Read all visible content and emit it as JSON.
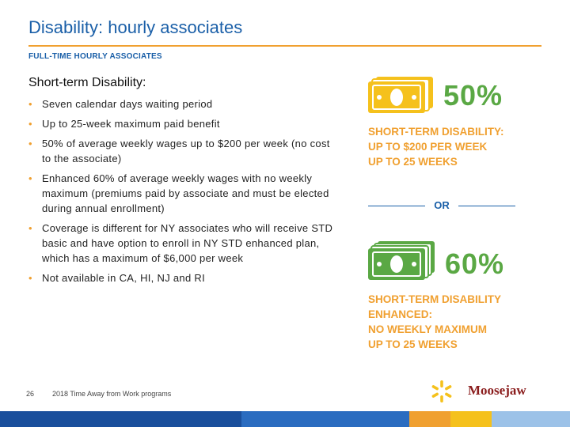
{
  "header": {
    "title": "Disability: hourly associates",
    "subtitle": "FULL-TIME HOURLY ASSOCIATES"
  },
  "main": {
    "section_heading": "Short-term Disability:",
    "bullets": [
      "Seven calendar days waiting period",
      "Up to 25-week maximum paid benefit",
      "50% of average weekly wages up to $200 per week (no cost to the associate)",
      "Enhanced 60% of average weekly wages with no weekly maximum (premiums paid by associate and must be elected during annual enrollment)",
      "Coverage is different for NY associates who will receive STD basic and have option to enroll in NY STD enhanced plan, which has a maximum of $6,000 per week",
      "Not available in CA, HI, NJ and RI"
    ]
  },
  "callouts": {
    "basic": {
      "percent": "50%",
      "lines": [
        "SHORT-TERM DISABILITY:",
        "UP TO $200 PER WEEK",
        "UP TO 25 WEEKS"
      ]
    },
    "separator": "OR",
    "enhanced": {
      "percent": "60%",
      "lines": [
        "SHORT-TERM DISABILITY",
        "ENHANCED:",
        "NO WEEKLY MAXIMUM",
        "UP TO 25 WEEKS"
      ]
    }
  },
  "footer": {
    "page_number": "26",
    "text": "2018 Time Away from Work programs",
    "brand": "Moosejaw"
  },
  "colors": {
    "title_blue": "#1a5fa8",
    "accent_orange": "#f0a030",
    "money_yellow": "#f5c11c",
    "money_green": "#5aa844",
    "brand_red": "#8a1c1c",
    "bar": [
      "#1a4f9c",
      "#2a6cc0",
      "#f0a030",
      "#f5c11c",
      "#9cc2e8"
    ]
  },
  "icons": [
    "money-stack-yellow-icon",
    "money-stack-green-icon",
    "walmart-spark-icon"
  ]
}
